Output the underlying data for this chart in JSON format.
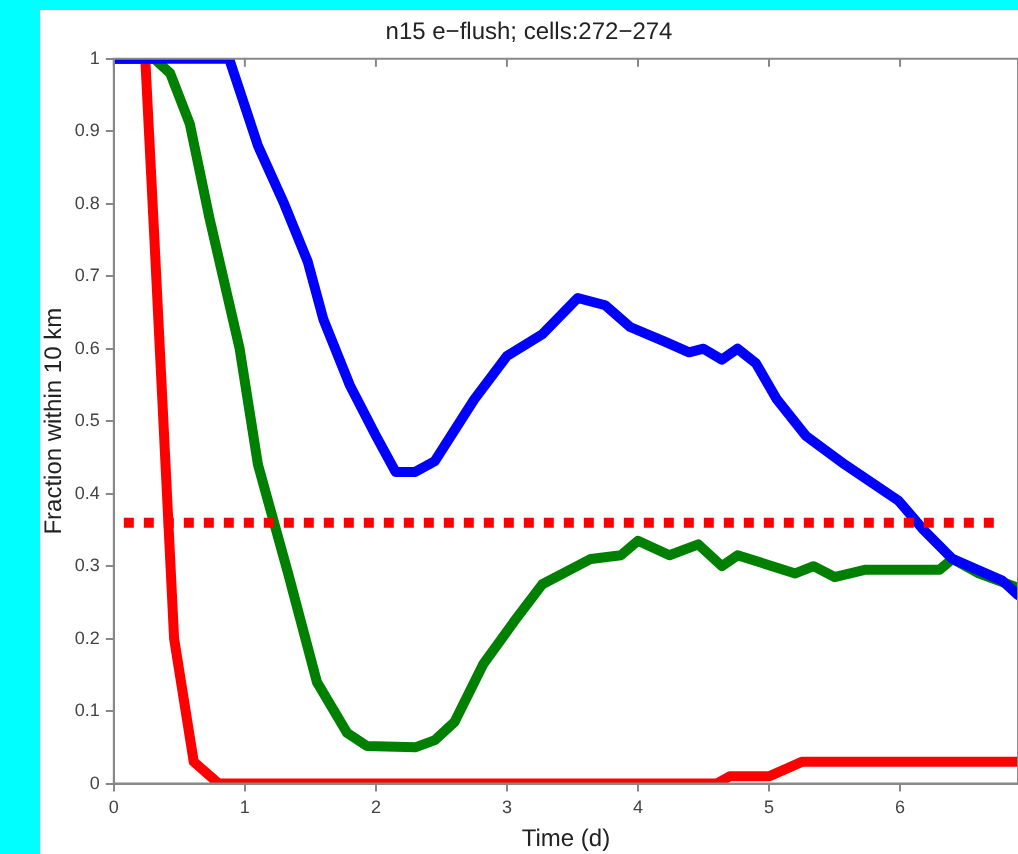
{
  "chart_data": {
    "type": "line",
    "title": "n15 e−flush; cells:272−274",
    "xlabel": "Time (d)",
    "ylabel": "Fraction within 10 km",
    "xlim": [
      0,
      6.9
    ],
    "xticks": [
      0,
      1,
      2,
      3,
      4,
      5,
      6
    ],
    "ylim": [
      0,
      1
    ],
    "yticks": [
      0,
      0.1,
      0.2,
      0.3,
      0.4,
      0.5,
      0.6,
      0.7,
      0.8,
      0.9,
      1
    ],
    "grid": false,
    "legend": false,
    "marker": "none",
    "line_style": "solid",
    "ref_lines": [
      {
        "axis": "y",
        "value": 0.36,
        "color": "#ff0000",
        "line_style": "dotted"
      }
    ],
    "series": [
      {
        "color": "#0000ff",
        "x": [
          0,
          0.88,
          1.1,
          1.3,
          1.48,
          1.6,
          1.8,
          2.0,
          2.15,
          2.3,
          2.45,
          2.75,
          3.0,
          3.27,
          3.54,
          3.75,
          3.94,
          4.2,
          4.39,
          4.5,
          4.64,
          4.76,
          4.9,
          5.06,
          5.28,
          5.58,
          5.99,
          6.18,
          6.4,
          6.78,
          6.9
        ],
        "values": [
          1,
          1,
          0.88,
          0.8,
          0.72,
          0.64,
          0.55,
          0.48,
          0.43,
          0.43,
          0.445,
          0.53,
          0.59,
          0.62,
          0.67,
          0.66,
          0.63,
          0.61,
          0.595,
          0.6,
          0.585,
          0.6,
          0.58,
          0.53,
          0.48,
          0.44,
          0.39,
          0.35,
          0.31,
          0.28,
          0.26
        ]
      },
      {
        "color": "#008000",
        "x": [
          0,
          0.31,
          0.43,
          0.58,
          0.73,
          0.96,
          1.1,
          1.33,
          1.55,
          1.78,
          1.93,
          2.3,
          2.45,
          2.6,
          2.82,
          3.06,
          3.27,
          3.64,
          3.87,
          4.0,
          4.24,
          4.46,
          4.64,
          4.76,
          5.2,
          5.34,
          5.5,
          5.73,
          6.3,
          6.4,
          6.6,
          6.9
        ],
        "values": [
          1,
          1,
          0.98,
          0.91,
          0.78,
          0.6,
          0.44,
          0.29,
          0.14,
          0.07,
          0.052,
          0.05,
          0.06,
          0.085,
          0.165,
          0.225,
          0.275,
          0.31,
          0.315,
          0.335,
          0.315,
          0.33,
          0.3,
          0.315,
          0.29,
          0.3,
          0.285,
          0.295,
          0.295,
          0.31,
          0.29,
          0.27
        ]
      },
      {
        "color": "#ff0000",
        "x": [
          0,
          0.24,
          0.31,
          0.37,
          0.46,
          0.61,
          0.8,
          4.6,
          4.7,
          5.0,
          5.25,
          6.9
        ],
        "values": [
          1,
          1,
          0.75,
          0.53,
          0.2,
          0.03,
          0,
          0,
          0.01,
          0.01,
          0.03,
          0.03
        ]
      }
    ]
  }
}
